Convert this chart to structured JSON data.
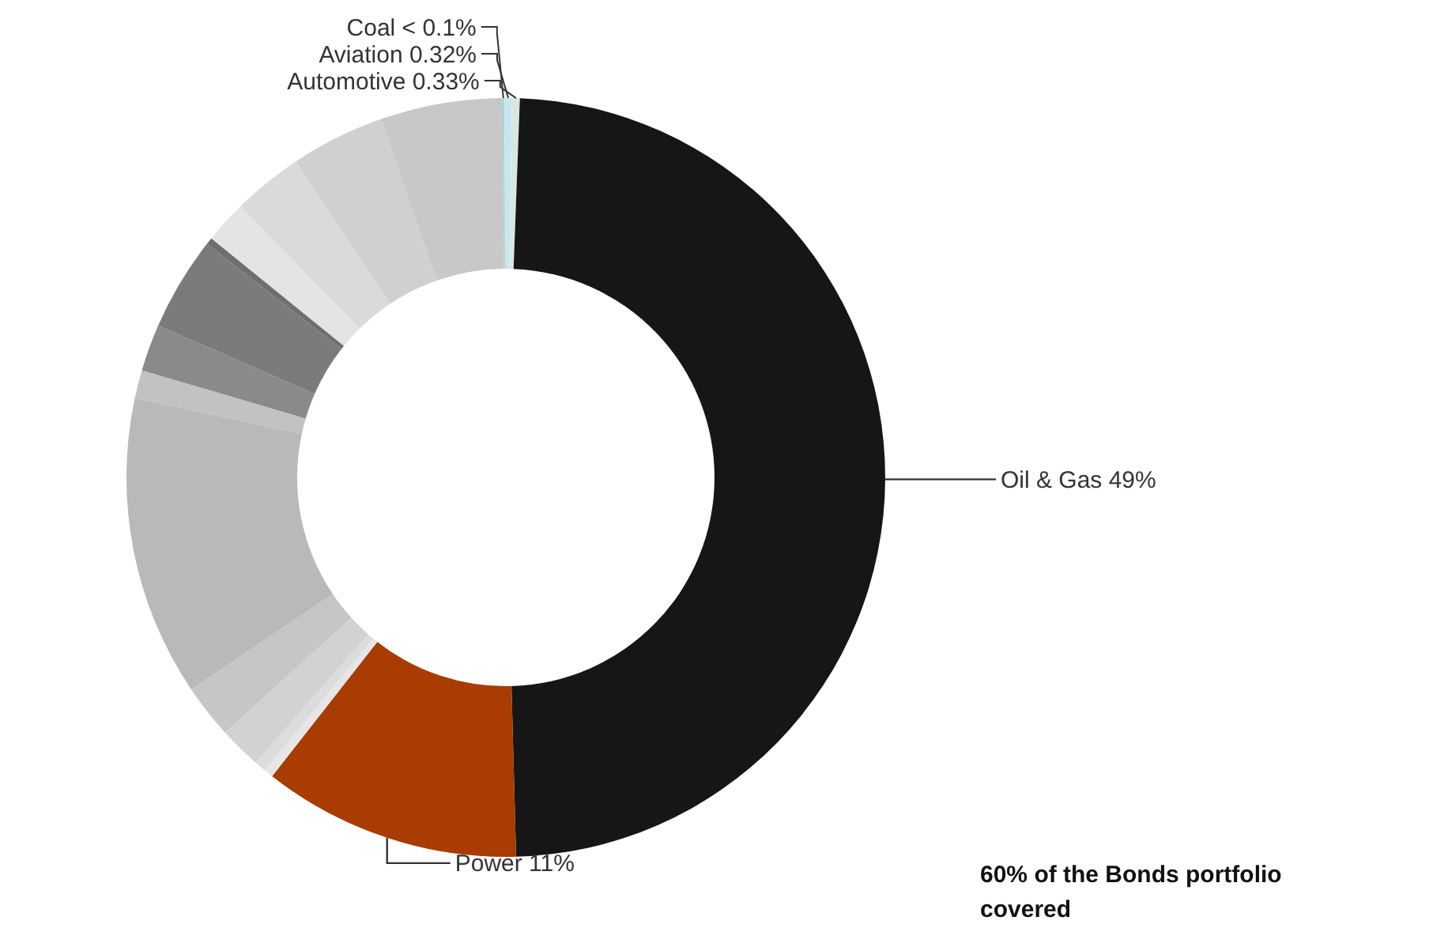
{
  "chart_data": {
    "type": "donut",
    "categories": [
      "Coal",
      "Aviation",
      "Automotive",
      "Oil & Gas",
      "Power",
      null,
      null,
      null,
      null,
      null,
      null,
      null,
      null,
      null,
      null,
      null,
      null,
      null
    ],
    "values": [
      0.09,
      0.32,
      0.33,
      49,
      11,
      0.4,
      0.5,
      1.8,
      2.3,
      12.8,
      1.2,
      2.0,
      4.0,
      0.3,
      1.8,
      3.0,
      4.0,
      5.2
    ],
    "value_labels": [
      "< 0.1%",
      "0.32%",
      "0.33%",
      "49%",
      "11%",
      null,
      null,
      null,
      null,
      null,
      null,
      null,
      null,
      null,
      null,
      null,
      null,
      null
    ],
    "colors": [
      "#9fd8cf",
      "#c9e6f0",
      "#d8e8e0",
      "#161616",
      "#a83c02",
      "#e6e6e6",
      "#dcdcdc",
      "#d2d2d2",
      "#c6c6c6",
      "#b9b9b9",
      "#c2c2c2",
      "#8a8a8a",
      "#7b7b7b",
      "#6f6f6f",
      "#e4e4e4",
      "#dadada",
      "#d0d0d0",
      "#c8c8c8"
    ],
    "legend": false,
    "annotations": [
      "60% of the Bonds portfolio covered"
    ]
  }
}
